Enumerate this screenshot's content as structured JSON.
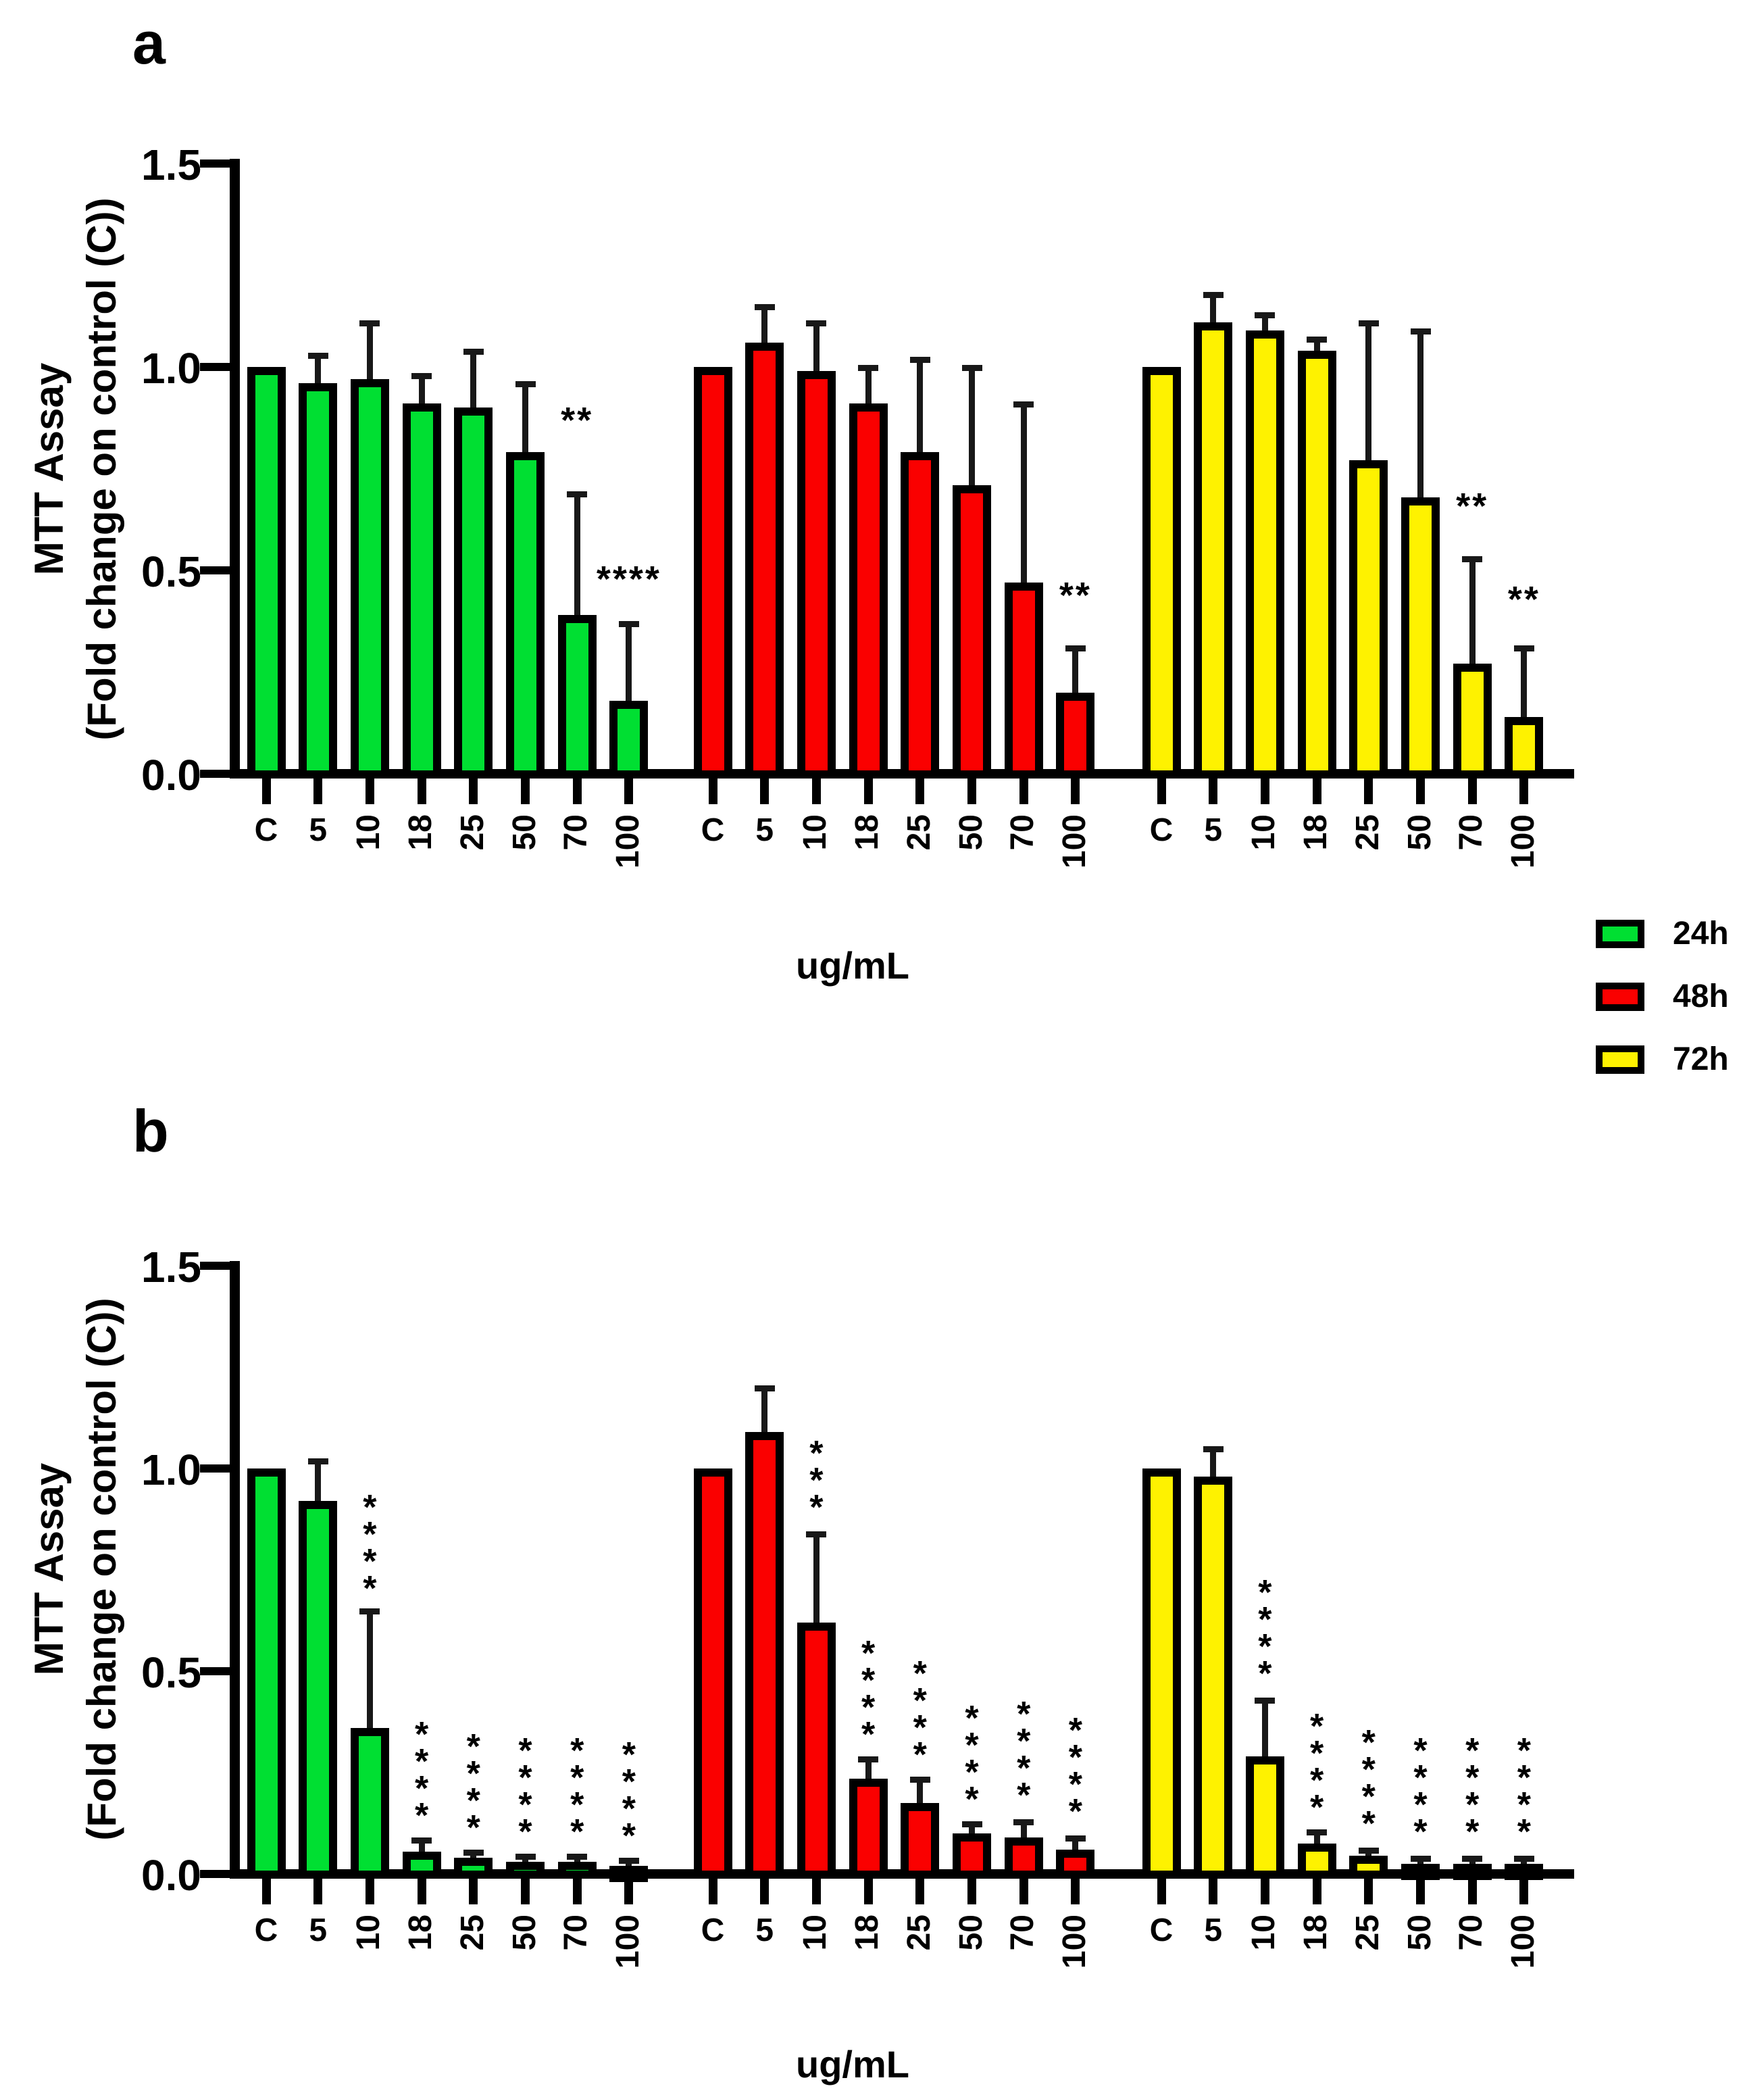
{
  "figure": {
    "panel_a_label": "a",
    "panel_b_label": "b",
    "y_axis_title_line1": "MTT Assay",
    "y_axis_title_line2": "(Fold change on control (C))",
    "x_axis_title": "ug/mL",
    "legend": [
      {
        "label": "24h",
        "color": "#00df32"
      },
      {
        "label": "48h",
        "color": "#fa0000"
      },
      {
        "label": "72h",
        "color": "#fef200"
      }
    ]
  },
  "chart_data": [
    {
      "id": "panel-a",
      "type": "bar",
      "panel_label": "a",
      "title": "",
      "xlabel": "ug/mL",
      "ylabel": "MTT Assay (Fold change on control (C))",
      "ylim": [
        0,
        1.5
      ],
      "grid": false,
      "legend_position": "right-below",
      "sig_orientation": "horizontal",
      "y_ticks": [
        {
          "v": 0.0,
          "label": "0.0"
        },
        {
          "v": 0.5,
          "label": "0.5"
        },
        {
          "v": 1.0,
          "label": "1.0"
        },
        {
          "v": 1.5,
          "label": "1.5"
        }
      ],
      "categories": [
        "C",
        "5",
        "10",
        "18",
        "25",
        "50",
        "70",
        "100"
      ],
      "series": [
        {
          "name": "24h",
          "color": "#00df32",
          "values": [
            1.0,
            0.96,
            0.97,
            0.91,
            0.9,
            0.79,
            0.39,
            0.18
          ],
          "error_tops": [
            null,
            1.03,
            1.11,
            0.98,
            1.04,
            0.96,
            0.69,
            0.37
          ],
          "significance": [
            null,
            null,
            null,
            null,
            null,
            null,
            "**",
            "****"
          ],
          "sig_y": [
            null,
            null,
            null,
            null,
            null,
            null,
            0.84,
            0.45
          ]
        },
        {
          "name": "48h",
          "color": "#fa0000",
          "values": [
            1.0,
            1.06,
            0.99,
            0.91,
            0.79,
            0.71,
            0.47,
            0.2
          ],
          "error_tops": [
            null,
            1.15,
            1.11,
            1.0,
            1.02,
            1.0,
            0.91,
            0.31
          ],
          "significance": [
            null,
            null,
            null,
            null,
            null,
            null,
            null,
            "**"
          ],
          "sig_y": [
            null,
            null,
            null,
            null,
            null,
            null,
            null,
            0.41
          ]
        },
        {
          "name": "72h",
          "color": "#fef200",
          "values": [
            1.0,
            1.11,
            1.09,
            1.04,
            0.77,
            0.68,
            0.27,
            0.14
          ],
          "error_tops": [
            null,
            1.18,
            1.13,
            1.07,
            1.11,
            1.09,
            0.53,
            0.31
          ],
          "significance": [
            null,
            null,
            null,
            null,
            null,
            null,
            "**",
            "**"
          ],
          "sig_y": [
            null,
            null,
            null,
            null,
            null,
            null,
            0.63,
            0.4
          ]
        }
      ]
    },
    {
      "id": "panel-b",
      "type": "bar",
      "panel_label": "b",
      "title": "",
      "xlabel": "ug/mL",
      "ylabel": "MTT Assay (Fold change on control (C))",
      "ylim": [
        0,
        1.5
      ],
      "grid": false,
      "sig_orientation": "vertical",
      "y_ticks": [
        {
          "v": 0.0,
          "label": "0.0"
        },
        {
          "v": 0.5,
          "label": "0.5"
        },
        {
          "v": 1.0,
          "label": "1.0"
        },
        {
          "v": 1.5,
          "label": "1.5"
        }
      ],
      "categories": [
        "C",
        "5",
        "10",
        "18",
        "25",
        "50",
        "70",
        "100"
      ],
      "series": [
        {
          "name": "24h",
          "color": "#00df32",
          "values": [
            1.0,
            0.92,
            0.36,
            0.055,
            0.04,
            0.03,
            0.03,
            0.02
          ],
          "error_tops": [
            null,
            1.02,
            0.65,
            0.085,
            0.055,
            0.045,
            0.045,
            0.035
          ],
          "significance": [
            null,
            null,
            "****",
            "****",
            "****",
            "****",
            "****",
            "****"
          ],
          "sig_y": [
            null,
            null,
            0.67,
            0.11,
            0.08,
            0.07,
            0.07,
            0.06
          ]
        },
        {
          "name": "48h",
          "color": "#fa0000",
          "values": [
            1.0,
            1.09,
            0.62,
            0.235,
            0.175,
            0.1,
            0.09,
            0.06
          ],
          "error_tops": [
            null,
            1.2,
            0.84,
            0.285,
            0.235,
            0.125,
            0.13,
            0.09
          ],
          "significance": [
            null,
            null,
            "***",
            "****",
            "****",
            "****",
            "****",
            "****"
          ],
          "sig_y": [
            null,
            null,
            0.87,
            0.31,
            0.26,
            0.15,
            0.16,
            0.12
          ]
        },
        {
          "name": "72h",
          "color": "#fef200",
          "values": [
            1.0,
            0.98,
            0.29,
            0.075,
            0.045,
            0.025,
            0.025,
            0.025
          ],
          "error_tops": [
            null,
            1.05,
            0.43,
            0.105,
            0.06,
            0.04,
            0.04,
            0.04
          ],
          "significance": [
            null,
            null,
            "****",
            "****",
            "****",
            "****",
            "****",
            "****"
          ],
          "sig_y": [
            null,
            null,
            0.46,
            0.13,
            0.09,
            0.07,
            0.07,
            0.07
          ]
        }
      ]
    }
  ]
}
